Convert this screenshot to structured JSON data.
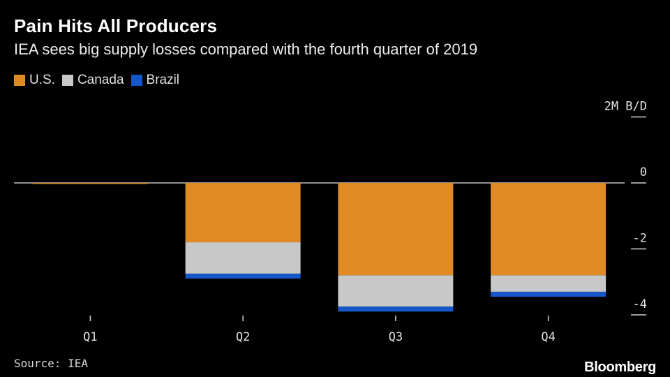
{
  "title": "Pain Hits All Producers",
  "subtitle": "IEA sees big supply losses compared with the fourth quarter of 2019",
  "source": "Source: IEA",
  "brand": "Bloomberg",
  "colors": {
    "us": "#e08a24",
    "canada": "#c8c8c8",
    "brazil": "#1557c8",
    "background": "#000000",
    "zero_line": "#bfbfbf"
  },
  "chart_data": {
    "type": "bar",
    "stacked": true,
    "categories": [
      "Q1",
      "Q2",
      "Q3",
      "Q4"
    ],
    "series": [
      {
        "name": "U.S.",
        "values": [
          -0.02,
          -1.8,
          -2.8,
          -2.8
        ]
      },
      {
        "name": "Canada",
        "values": [
          0,
          -0.95,
          -0.95,
          -0.5
        ]
      },
      {
        "name": "Brazil",
        "values": [
          0,
          -0.15,
          -0.15,
          -0.15
        ]
      }
    ],
    "y_unit_label": "2M B/D",
    "y_ticks": [
      2,
      0,
      -2,
      -4
    ],
    "y_tick_labels": [
      "2M B/D",
      "0",
      "-2",
      "-4"
    ],
    "ylim": [
      -4,
      2
    ],
    "legend_position": "top-left",
    "grid": false
  }
}
